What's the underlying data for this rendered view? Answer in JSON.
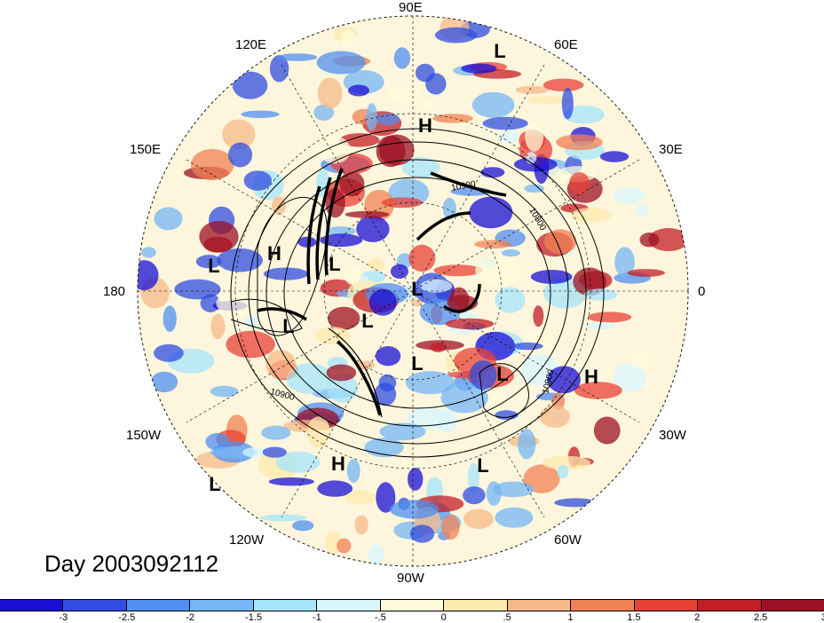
{
  "lon_labels": [
    {
      "id": "90E",
      "text": "90E"
    },
    {
      "id": "60E",
      "text": "60E"
    },
    {
      "id": "120E",
      "text": "120E"
    },
    {
      "id": "30E",
      "text": "30E"
    },
    {
      "id": "150E",
      "text": "150E"
    },
    {
      "id": "0",
      "text": "0"
    },
    {
      "id": "180",
      "text": "180"
    },
    {
      "id": "30W",
      "text": "30W"
    },
    {
      "id": "150W",
      "text": "150W"
    },
    {
      "id": "60W",
      "text": "60W"
    },
    {
      "id": "120W",
      "text": "120W"
    },
    {
      "id": "90W",
      "text": "90W"
    }
  ],
  "pressure_centers": [
    "L",
    "H",
    "L",
    "H",
    "L",
    "L",
    "L",
    "L",
    "L",
    "L",
    "L",
    "H",
    "H",
    "L",
    "L"
  ],
  "contour_labels": [
    "10900",
    "10800",
    "10900",
    "10900"
  ],
  "day_label": "Day 2003092112",
  "colorbar": {
    "colors": [
      "#1a0fd6",
      "#2f4ee0",
      "#4f8ff0",
      "#74b6f6",
      "#a6e4fb",
      "#d8f6fd",
      "#fefbdb",
      "#fdeaae",
      "#f7b98a",
      "#f08254",
      "#e84238",
      "#c31d26",
      "#9c1023"
    ],
    "ticks": [
      "-3",
      "-2.5",
      "-2",
      "-1.5",
      "-1",
      "-.5",
      "0",
      ".5",
      "1",
      "1.5",
      "2",
      "2.5",
      "3"
    ]
  }
}
